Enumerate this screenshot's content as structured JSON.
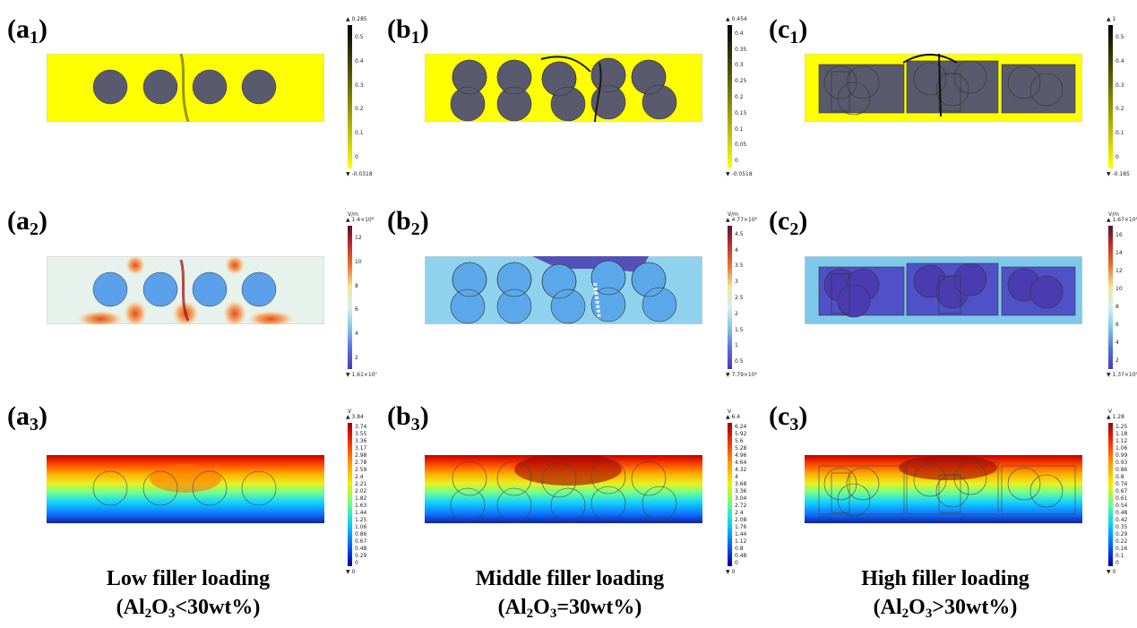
{
  "columns": [
    {
      "letter": "a",
      "caption_title": "Low filler loading",
      "caption_formula_pre": "(Al",
      "caption_formula_sub1": "2",
      "caption_formula_mid": "O",
      "caption_formula_sub2": "3",
      "caption_formula_post": "<30wt%)"
    },
    {
      "letter": "b",
      "caption_title": "Middle filler loading",
      "caption_formula_pre": "(Al",
      "caption_formula_sub1": "2",
      "caption_formula_mid": "O",
      "caption_formula_sub2": "3",
      "caption_formula_post": "=30wt%)"
    },
    {
      "letter": "c",
      "caption_title": "High filler loading",
      "caption_formula_pre": "(Al",
      "caption_formula_sub1": "2",
      "caption_formula_mid": "O",
      "caption_formula_sub2": "3",
      "caption_formula_post": ">30wt%)"
    }
  ],
  "panel_labels": {
    "a1": {
      "open": "(a",
      "sub": "1",
      "close": ")"
    },
    "b1": {
      "open": "(b",
      "sub": "1",
      "close": ")"
    },
    "c1": {
      "open": "(c",
      "sub": "1",
      "close": ")"
    },
    "a2": {
      "open": "(a",
      "sub": "2",
      "close": ")"
    },
    "b2": {
      "open": "(b",
      "sub": "2",
      "close": ")"
    },
    "c2": {
      "open": "(c",
      "sub": "2",
      "close": ")"
    },
    "a3": {
      "open": "(a",
      "sub": "3",
      "close": ")"
    },
    "b3": {
      "open": "(b",
      "sub": "3",
      "close": ")"
    },
    "c3": {
      "open": "(c",
      "sub": "3",
      "close": ")"
    }
  },
  "colorbars": {
    "a1": {
      "top": "▲ 0.285",
      "bottom": "▼ -0.0318",
      "unit": "",
      "ticks": [
        "0.5",
        "0.4",
        "0.3",
        "0.2",
        "0.1",
        "0"
      ],
      "colors": [
        "#000000",
        "#ffff00"
      ]
    },
    "b1": {
      "top": "▲ 0.454",
      "bottom": "▼ -0.0518",
      "unit": "",
      "ticks": [
        "0.4",
        "0.35",
        "0.3",
        "0.25",
        "0.2",
        "0.15",
        "0.1",
        "0.05",
        "0"
      ],
      "colors": [
        "#000000",
        "#ffff00"
      ]
    },
    "c1": {
      "top": "▲ 1",
      "bottom": "▼ -0.185",
      "unit": "",
      "ticks": [
        "0.5",
        "0.4",
        "0.3",
        "0.2",
        "0.1",
        "0"
      ],
      "colors": [
        "#000000",
        "#ffff00"
      ]
    },
    "a2": {
      "top": "▲ 1.4×10⁸",
      "bottom": "▼ 1.61×10⁷",
      "unit": "V/m",
      "ticks": [
        "12",
        "10",
        "8",
        "6",
        "4",
        "2"
      ],
      "colors": [
        "#5a1030",
        "#c8302a",
        "#e87a30",
        "#f2e6a0",
        "#d6f0ec",
        "#7ec8e8",
        "#5a6ee0",
        "#4a3cb0"
      ]
    },
    "b2": {
      "top": "▲ 4.77×10⁸",
      "bottom": "▼ 7.79×10⁶",
      "unit": "V/m",
      "ticks": [
        "4.5",
        "4",
        "3.5",
        "3",
        "2.5",
        "2",
        "1.5",
        "1",
        "0.5"
      ],
      "colors": [
        "#5a1030",
        "#c8302a",
        "#e87a30",
        "#f2e6a0",
        "#d6f0ec",
        "#7ec8e8",
        "#5a6ee0",
        "#4a3cb0"
      ]
    },
    "c2": {
      "top": "▲ 1.67×10⁸",
      "bottom": "▼ 1.37×10⁵",
      "unit": "V/m",
      "ticks": [
        "16",
        "14",
        "12",
        "10",
        "8",
        "6",
        "4",
        "2"
      ],
      "colors": [
        "#5a1030",
        "#c8302a",
        "#e87a30",
        "#f2e6a0",
        "#d6f0ec",
        "#7ec8e8",
        "#5a6ee0",
        "#4a3cb0"
      ]
    },
    "a3": {
      "top": "▲ 3.84",
      "bottom": "▼ 0",
      "unit": "V",
      "ticks": [
        "3.74",
        "3.55",
        "3.36",
        "3.17",
        "2.98",
        "2.78",
        "2.59",
        "2.4",
        "2.21",
        "2.02",
        "1.82",
        "1.63",
        "1.44",
        "1.25",
        "1.06",
        "0.86",
        "0.67",
        "0.48",
        "0.29",
        "0"
      ],
      "colors": [
        "#a00000",
        "#ff3000",
        "#ffa000",
        "#f0f000",
        "#60ff90",
        "#00d0ff",
        "#0060ff",
        "#0000a0"
      ]
    },
    "b3": {
      "top": "▲ 6.4",
      "bottom": "▼ 0",
      "unit": "V",
      "ticks": [
        "6.24",
        "5.92",
        "5.6",
        "5.28",
        "4.96",
        "4.64",
        "4.32",
        "4",
        "3.68",
        "3.36",
        "3.04",
        "2.72",
        "2.4",
        "2.08",
        "1.76",
        "1.44",
        "1.12",
        "0.8",
        "0.48",
        "0"
      ],
      "colors": [
        "#a00000",
        "#ff3000",
        "#ffa000",
        "#f0f000",
        "#60ff90",
        "#00d0ff",
        "#0060ff",
        "#0000a0"
      ]
    },
    "c3": {
      "top": "▲ 1.28",
      "bottom": "▼ 0",
      "unit": "V",
      "ticks": [
        "1.25",
        "1.18",
        "1.12",
        "1.06",
        "0.99",
        "0.93",
        "0.86",
        "0.8",
        "0.74",
        "0.67",
        "0.61",
        "0.54",
        "0.48",
        "0.42",
        "0.35",
        "0.29",
        "0.22",
        "0.16",
        "0.1",
        "0"
      ],
      "colors": [
        "#a00000",
        "#ff3000",
        "#ffa000",
        "#f0f000",
        "#60ff90",
        "#00d0ff",
        "#0060ff",
        "#0000a0"
      ]
    }
  }
}
